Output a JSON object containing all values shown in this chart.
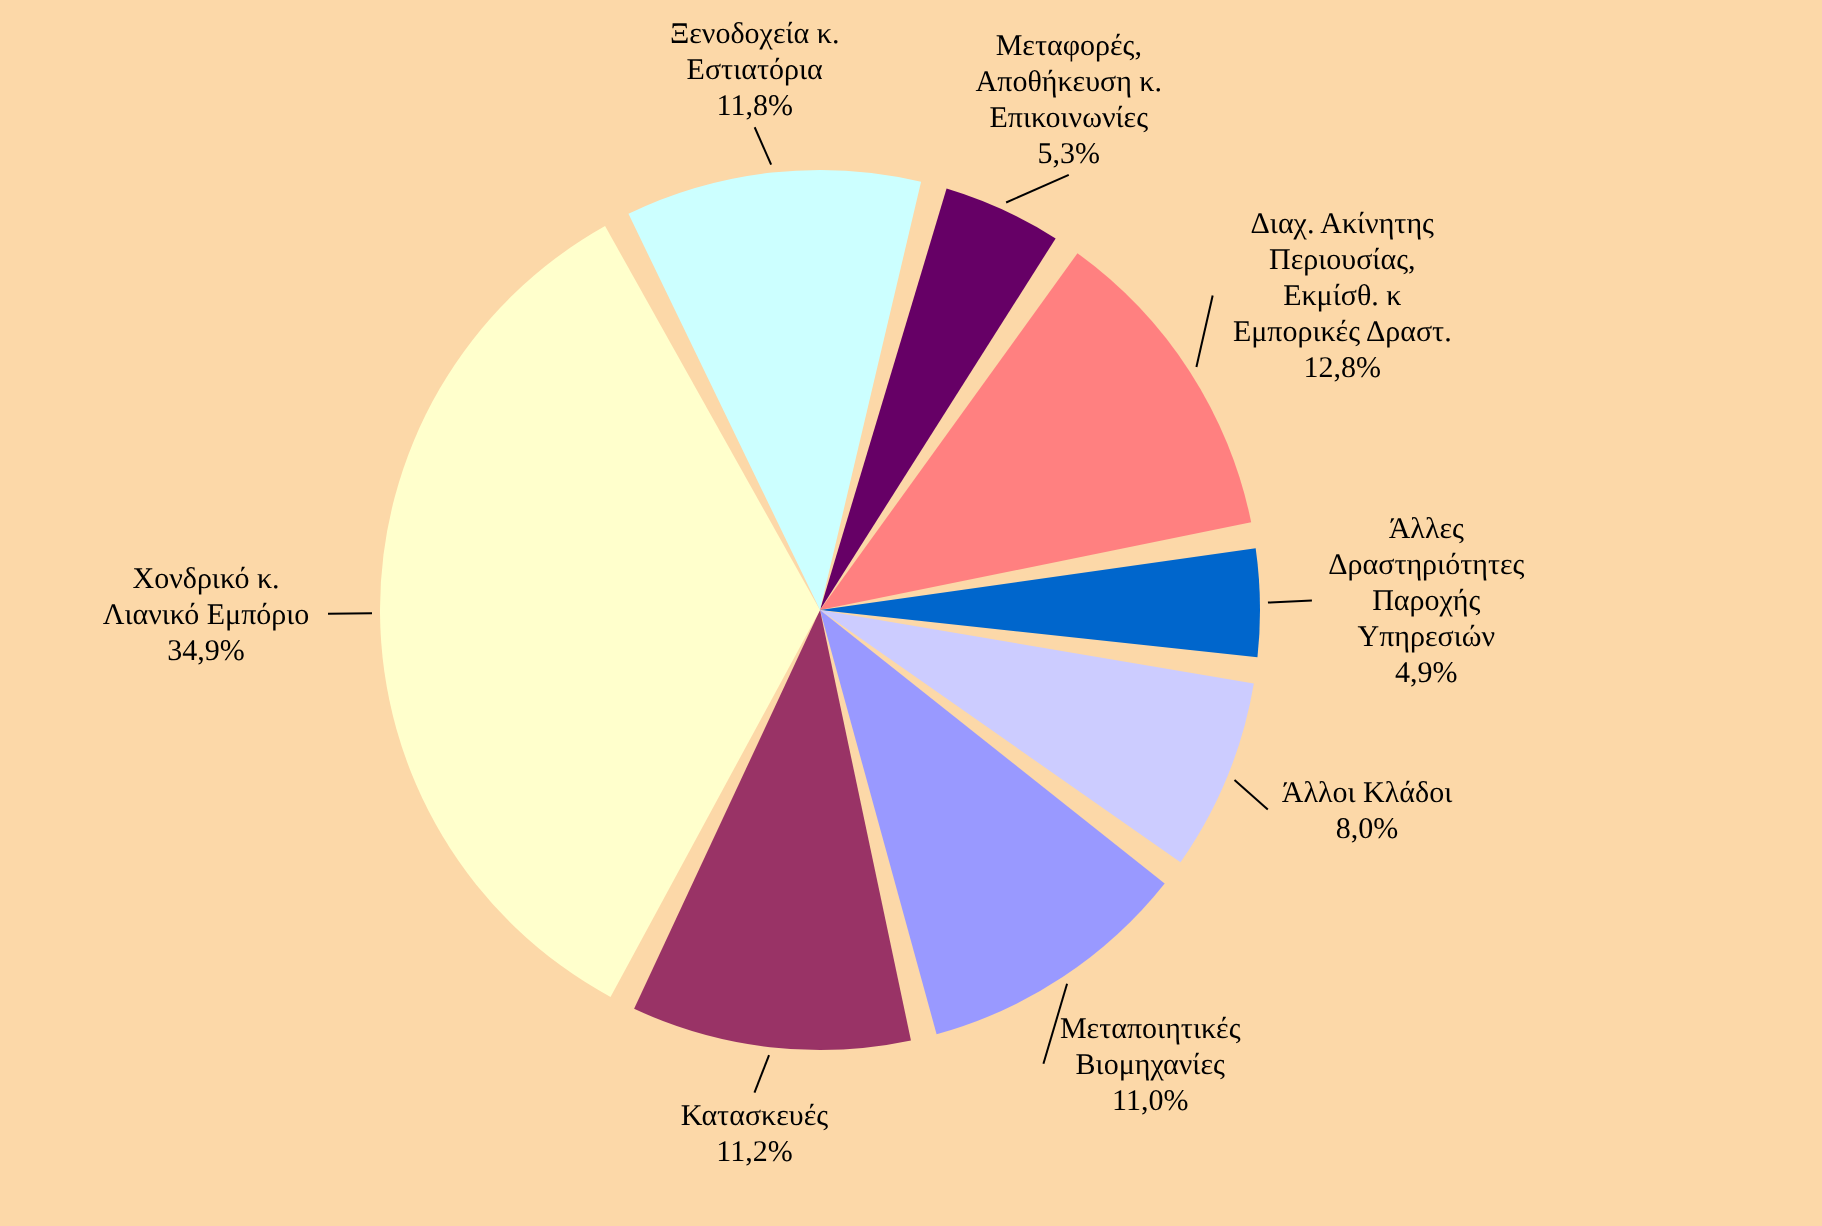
{
  "chart_data": {
    "type": "pie",
    "categories": [
      "Μεταφορές,\nΑποθήκευση κ.\nΕπικοινωνίες",
      "Διαχ. Ακίνητης\nΠεριουσίας,\nΕκμίσθ. κ\nΕμπορικές Δραστ.",
      "Άλλες\nΔραστηριότητες\nΠαροχής\nΥπηρεσιών",
      "Άλλοι Κλάδοι",
      "Μεταποιητικές\nΒιομηχανίες",
      "Κατασκευές",
      "Χονδρικό κ.\nΛιανικό Εμπόριο",
      "Ξενοδοχεία κ.\nΕστιατόρια"
    ],
    "values": [
      5.3,
      12.8,
      4.9,
      8.0,
      11.0,
      11.2,
      34.9,
      11.8
    ],
    "value_labels": [
      "5,3%",
      "12,8%",
      "4,9%",
      "8,0%",
      "11,0%",
      "11,2%",
      "34,9%",
      "11,8%"
    ],
    "colors": [
      "#660066",
      "#ff8080",
      "#0066cc",
      "#ccccff",
      "#9999ff",
      "#993366",
      "#ffffcc",
      "#ccffff"
    ]
  }
}
